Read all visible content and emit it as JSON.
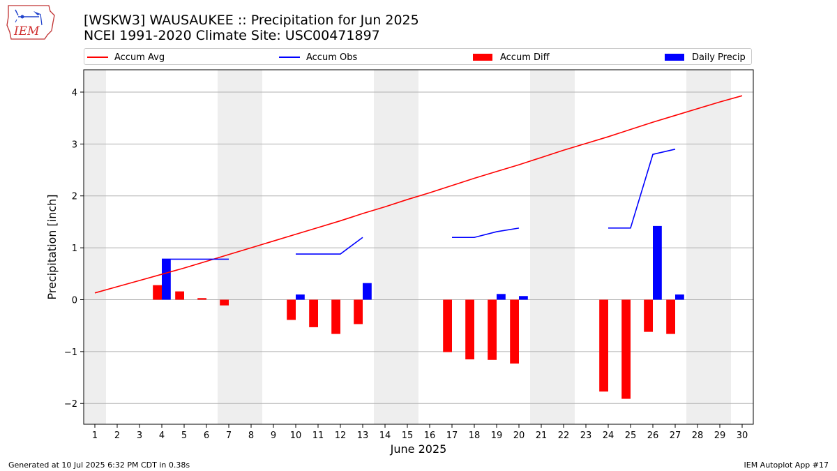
{
  "title": "[WSKW3] WAUSAUKEE :: Precipitation for Jun 2025",
  "subtitle": "NCEI 1991-2020 Climate Site: USC00471897",
  "logo_text": "IEM",
  "footer": {
    "left": "Generated at 10 Jul 2025 6:32 PM CDT in 0.38s",
    "right": "IEM Autoplot App #17"
  },
  "colors": {
    "avg": "#ff0000",
    "obs": "#0000ff",
    "diff": "#ff0000",
    "daily": "#0000ff",
    "weekend": "#eeeeee",
    "grid": "#b0b0b0"
  },
  "legend": [
    {
      "label": "Accum Avg",
      "kind": "line",
      "color": "#ff0000"
    },
    {
      "label": "Accum Obs",
      "kind": "line",
      "color": "#0000ff"
    },
    {
      "label": "Accum Diff",
      "kind": "box",
      "color": "#ff0000"
    },
    {
      "label": "Daily Precip",
      "kind": "box",
      "color": "#0000ff"
    }
  ],
  "chart_data": {
    "type": "bar",
    "xlabel": "June 2025",
    "ylabel": "Precipitation [inch]",
    "xlim": [
      0.5,
      30.5
    ],
    "ylim": [
      -2.4,
      4.43
    ],
    "yticks": [
      4,
      3,
      2,
      1,
      0,
      -1,
      -2
    ],
    "ytick_labels": [
      "4",
      "3",
      "2",
      "1",
      "0",
      "−1",
      "−2"
    ],
    "grid": true,
    "legend_position": "top",
    "days": [
      1,
      2,
      3,
      4,
      5,
      6,
      7,
      8,
      9,
      10,
      11,
      12,
      13,
      14,
      15,
      16,
      17,
      18,
      19,
      20,
      21,
      22,
      23,
      24,
      25,
      26,
      27,
      28,
      29,
      30
    ],
    "weekend_days": [
      1,
      7,
      8,
      14,
      15,
      21,
      22,
      28,
      29
    ],
    "series": [
      {
        "name": "Accum Avg",
        "kind": "line",
        "values": [
          0.13,
          0.25,
          0.37,
          0.49,
          0.61,
          0.74,
          0.87,
          1.0,
          1.13,
          1.26,
          1.39,
          1.52,
          1.66,
          1.79,
          1.93,
          2.06,
          2.2,
          2.34,
          2.47,
          2.6,
          2.74,
          2.88,
          3.01,
          3.14,
          3.28,
          3.42,
          3.55,
          3.68,
          3.81,
          3.93
        ]
      },
      {
        "name": "Accum Obs",
        "kind": "line",
        "values": [
          null,
          null,
          null,
          0.78,
          0.78,
          0.78,
          0.78,
          null,
          null,
          0.88,
          0.88,
          0.88,
          1.2,
          null,
          null,
          null,
          1.2,
          1.2,
          1.31,
          1.38,
          null,
          null,
          null,
          1.38,
          1.38,
          2.8,
          2.9,
          null,
          null,
          null
        ]
      },
      {
        "name": "Accum Diff",
        "kind": "bar",
        "values": [
          null,
          null,
          null,
          0.28,
          0.16,
          0.03,
          -0.11,
          null,
          null,
          -0.39,
          -0.53,
          -0.66,
          -0.47,
          null,
          null,
          null,
          -1.01,
          -1.15,
          -1.16,
          -1.23,
          null,
          null,
          null,
          -1.77,
          -1.91,
          -0.62,
          -0.66,
          null,
          null,
          null
        ]
      },
      {
        "name": "Daily Precip",
        "kind": "bar",
        "values": [
          null,
          null,
          null,
          0.78,
          null,
          null,
          null,
          null,
          null,
          0.1,
          null,
          null,
          0.32,
          null,
          null,
          null,
          null,
          null,
          0.11,
          0.07,
          null,
          null,
          null,
          null,
          null,
          1.42,
          0.1,
          null,
          null,
          null
        ]
      }
    ]
  }
}
